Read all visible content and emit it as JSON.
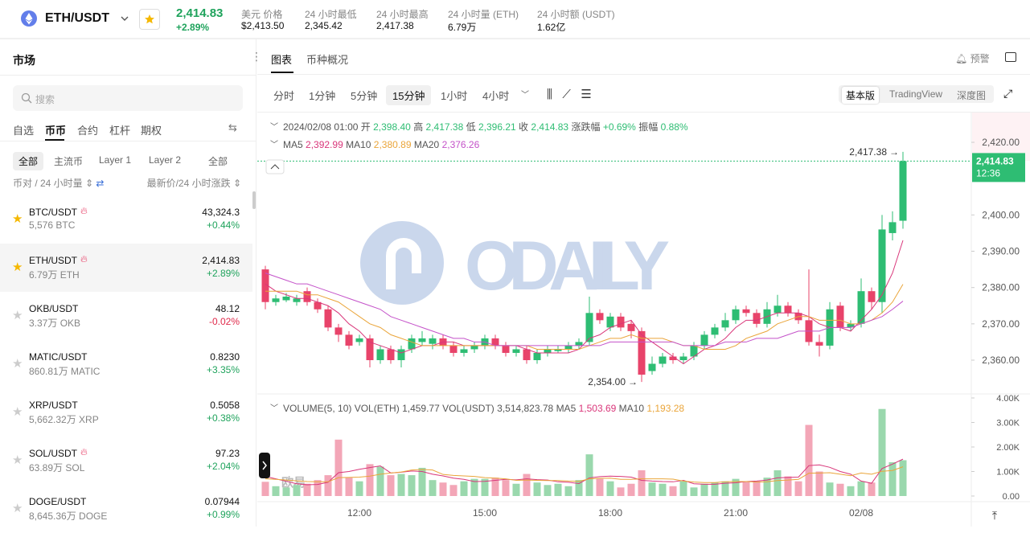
{
  "header": {
    "pair": "ETH/USDT",
    "price": "2,414.83",
    "change": "+2.89%",
    "stats": [
      {
        "label": "美元 价格",
        "value": "$2,413.50"
      },
      {
        "label": "24 小时最低",
        "value": "2,345.42"
      },
      {
        "label": "24 小时最高",
        "value": "2,417.38"
      },
      {
        "label": "24 小时量 (ETH)",
        "value": "6.79万"
      },
      {
        "label": "24 小时额 (USDT)",
        "value": "1.62亿"
      }
    ]
  },
  "sidebar": {
    "title": "市场",
    "search": "搜索",
    "tabs": [
      "自选",
      "币币",
      "合约",
      "杠杆",
      "期权"
    ],
    "active_tab": 1,
    "filters": [
      "全部",
      "主流币",
      "Layer 1",
      "Layer 2",
      "全部"
    ],
    "sort_left": "币对 / 24 小时量",
    "sort_right": "最新价/24 小时涨跌",
    "rows": [
      {
        "pair": "BTC/USDT",
        "volume": "5,576 BTC",
        "price": "43,324.3",
        "change": "+0.44%",
        "favorite": true,
        "hot": true
      },
      {
        "pair": "ETH/USDT",
        "volume": "6.79万 ETH",
        "price": "2,414.83",
        "change": "+2.89%",
        "favorite": true,
        "hot": true,
        "selected": true
      },
      {
        "pair": "OKB/USDT",
        "volume": "3.37万 OKB",
        "price": "48.12",
        "change": "-0.02%",
        "favorite": false,
        "hot": false
      },
      {
        "pair": "MATIC/USDT",
        "volume": "860.81万 MATIC",
        "price": "0.8230",
        "change": "+3.35%",
        "favorite": false,
        "hot": false
      },
      {
        "pair": "XRP/USDT",
        "volume": "5,662.32万 XRP",
        "price": "0.5058",
        "change": "+0.38%",
        "favorite": false,
        "hot": false
      },
      {
        "pair": "SOL/USDT",
        "volume": "63.89万 SOL",
        "price": "97.23",
        "change": "+2.04%",
        "favorite": false,
        "hot": true
      },
      {
        "pair": "DOGE/USDT",
        "volume": "8,645.36万 DOGE",
        "price": "0.07944",
        "change": "+0.99%",
        "favorite": false,
        "hot": false
      }
    ]
  },
  "tabs": [
    "图表",
    "币种概况"
  ],
  "alert": "预警",
  "toolbar": {
    "intervals": [
      "分时",
      "1分钟",
      "5分钟",
      "15分钟",
      "1小时",
      "4小时"
    ],
    "active": 3,
    "views": [
      "基本版",
      "TradingView",
      "深度图"
    ],
    "active_view": 0
  },
  "chart_data": {
    "type": "candlestick",
    "watermark": "ODAILY",
    "sub_watermark": "欧易",
    "info": {
      "time": "2024/02/08 01:00",
      "items": [
        {
          "label": "开",
          "value": "2,398.40"
        },
        {
          "label": "高",
          "value": "2,417.38"
        },
        {
          "label": "低",
          "value": "2,396.21"
        },
        {
          "label": "收",
          "value": "2,414.83"
        },
        {
          "label": "涨跌幅",
          "value": "+0.69%"
        },
        {
          "label": "振幅",
          "value": "0.88%"
        }
      ]
    },
    "categories": [
      null,
      null,
      null,
      null,
      null,
      null,
      null,
      null,
      null,
      "12:00",
      null,
      null,
      null,
      null,
      null,
      null,
      null,
      null,
      null,
      null,
      null,
      "15:00",
      null,
      null,
      null,
      null,
      null,
      null,
      null,
      null,
      null,
      null,
      null,
      "18:00",
      null,
      null,
      null,
      null,
      null,
      null,
      null,
      null,
      null,
      null,
      null,
      "21:00",
      null,
      null,
      null,
      null,
      null,
      null,
      null,
      null,
      null,
      null,
      null,
      "02/08",
      null,
      null,
      null,
      null
    ],
    "up_color": "#2ebd73",
    "down_color": "#e8436a",
    "open": [
      2385,
      2376,
      2376.5,
      2376,
      2379,
      2376,
      2374,
      2369,
      2367,
      2365,
      2366,
      2360,
      2363,
      2360,
      2363,
      2365,
      2364.5,
      2366,
      2364,
      2362,
      2363,
      2364,
      2366,
      2364,
      2362,
      2363,
      2360,
      2362,
      2362.5,
      2363,
      2364,
      2365,
      2373,
      2369,
      2372,
      2370,
      2368,
      2357,
      2359,
      2361,
      2360,
      2361,
      2364,
      2367,
      2369,
      2371,
      2374,
      2373,
      2370,
      2373,
      2375,
      2373,
      2371,
      2365,
      2364,
      2375,
      2369,
      2370,
      2379,
      2376,
      2395,
      2398.4
    ],
    "high": [
      2386,
      2378,
      2378.5,
      2378,
      2380,
      2377,
      2375,
      2370,
      2368,
      2367,
      2367,
      2364,
      2364,
      2364,
      2367,
      2368,
      2367,
      2367,
      2365,
      2364,
      2365,
      2367,
      2367,
      2365,
      2364,
      2364,
      2363,
      2364,
      2364,
      2365,
      2366,
      2377.5,
      2374,
      2373,
      2373,
      2371,
      2369,
      2361,
      2362,
      2362,
      2362,
      2365,
      2368,
      2370,
      2373,
      2375,
      2375,
      2374,
      2376,
      2378,
      2376,
      2374,
      2385,
      2367,
      2376,
      2376,
      2371,
      2382.5,
      2380,
      2400,
      2401,
      2417.38
    ],
    "low": [
      2374,
      2375,
      2376,
      2375,
      2375,
      2373,
      2368,
      2365,
      2363,
      2364,
      2358,
      2359,
      2359,
      2358,
      2362,
      2364,
      2363,
      2363,
      2361,
      2361,
      2362,
      2363,
      2363,
      2361,
      2361,
      2359,
      2359,
      2361,
      2362,
      2362,
      2363,
      2364,
      2370,
      2368,
      2368,
      2366,
      2354,
      2356,
      2358,
      2359,
      2359,
      2360,
      2363,
      2366,
      2368,
      2370,
      2372,
      2369,
      2369,
      2372,
      2372,
      2370,
      2364,
      2361,
      2363,
      2368,
      2368,
      2369,
      2374,
      2373,
      2393,
      2396.21
    ],
    "close": [
      2376,
      2377,
      2377.5,
      2377,
      2376,
      2374,
      2369,
      2367,
      2364,
      2366,
      2360,
      2363,
      2360,
      2363,
      2366,
      2366,
      2366,
      2364,
      2362,
      2363,
      2364,
      2366,
      2364,
      2362,
      2363,
      2360,
      2362,
      2363,
      2363,
      2364,
      2365,
      2373,
      2371,
      2372,
      2369,
      2368,
      2356,
      2359,
      2361,
      2360,
      2361,
      2364,
      2367,
      2369,
      2371,
      2374,
      2373,
      2370,
      2374,
      2375,
      2373,
      2371,
      2365,
      2364,
      2374,
      2369,
      2370,
      2379,
      2376,
      2396,
      2398,
      2414.83
    ],
    "ma_lines": [
      {
        "name": "MA5",
        "value_label": "2,392.99",
        "color": "#d9367a",
        "values": [
          2381,
          2379,
          2378,
          2377,
          2377,
          2376,
          2375,
          2373,
          2370,
          2368,
          2365,
          2364,
          2363,
          2362,
          2363,
          2364,
          2364,
          2365,
          2365,
          2364,
          2364,
          2364,
          2364,
          2364,
          2364,
          2363,
          2362,
          2362,
          2362,
          2362,
          2363,
          2366,
          2367,
          2369,
          2370,
          2371,
          2367,
          2365,
          2363,
          2361,
          2359,
          2361,
          2363,
          2364,
          2366,
          2369,
          2371,
          2371,
          2372,
          2373,
          2373,
          2373,
          2372,
          2370,
          2369,
          2369,
          2368,
          2371,
          2374,
          2378,
          2384,
          2392.99
        ]
      },
      {
        "name": "MA10",
        "value_label": "2,380.89",
        "color": "#eaa53a",
        "values": [
          2379,
          2379,
          2379,
          2379,
          2378,
          2378,
          2377,
          2376,
          2374,
          2372,
          2370,
          2369,
          2367,
          2366,
          2365,
          2364,
          2364,
          2364,
          2364,
          2364,
          2364,
          2364,
          2364,
          2364,
          2364,
          2364,
          2363,
          2363,
          2363,
          2363,
          2363,
          2364,
          2365,
          2366,
          2366,
          2367,
          2366,
          2366,
          2366,
          2365,
          2364,
          2364,
          2363,
          2363,
          2363,
          2364,
          2366,
          2367,
          2368,
          2370,
          2371,
          2372,
          2372,
          2371,
          2371,
          2371,
          2370,
          2370,
          2371,
          2373,
          2376,
          2380.89
        ]
      },
      {
        "name": "MA20",
        "value_label": "2,376.26",
        "color": "#c452c9",
        "values": [
          2384,
          2383,
          2382,
          2381,
          2381,
          2380,
          2379,
          2378,
          2377,
          2376,
          2375,
          2374,
          2372,
          2371,
          2370,
          2369,
          2368,
          2367,
          2366,
          2366,
          2365,
          2365,
          2364,
          2364,
          2364,
          2364,
          2364,
          2364,
          2364,
          2364,
          2364,
          2364,
          2364,
          2365,
          2365,
          2365,
          2365,
          2365,
          2365,
          2365,
          2364,
          2364,
          2364,
          2364,
          2365,
          2365,
          2365,
          2366,
          2366,
          2366,
          2367,
          2368,
          2368,
          2368,
          2369,
          2369,
          2369,
          2370,
          2371,
          2372,
          2374,
          2376.26
        ]
      }
    ],
    "ylim": [
      2350.7,
      2428.2
    ],
    "yticks": [
      {
        "value": 2360,
        "label": "2,360.00"
      },
      {
        "value": 2370,
        "label": "2,370.00"
      },
      {
        "value": 2380,
        "label": "2,380.00"
      },
      {
        "value": 2390,
        "label": "2,390.00"
      },
      {
        "value": 2400,
        "label": "2,400.00"
      },
      {
        "value": 2420,
        "label": "2,420.00"
      }
    ],
    "last_price": {
      "value": 2414.83,
      "label": "2,414.83",
      "countdown": "12:36"
    },
    "annotations": [
      {
        "index": 61,
        "value": 2417.38,
        "label": "2,417.38"
      },
      {
        "index": 36,
        "value": 2354,
        "label": "2,354.00"
      }
    ],
    "volume": {
      "title": "VOLUME(5, 10)",
      "info": [
        {
          "label": "VOL(ETH)",
          "value": "1,459.77"
        },
        {
          "label": "VOL(USDT)",
          "value": "3,514,823.78"
        }
      ],
      "up_color": "#9ad8ad",
      "down_color": "#f3a6b7",
      "values": [
        580,
        400,
        350,
        450,
        500,
        650,
        850,
        2300,
        750,
        600,
        1300,
        1200,
        850,
        900,
        850,
        1150,
        650,
        550,
        450,
        600,
        700,
        700,
        750,
        650,
        500,
        900,
        550,
        450,
        500,
        400,
        650,
        1700,
        700,
        600,
        350,
        500,
        1050,
        550,
        500,
        400,
        600,
        350,
        500,
        550,
        600,
        700,
        600,
        600,
        750,
        1050,
        800,
        600,
        2900,
        1000,
        550,
        500,
        400,
        600,
        550,
        3550,
        1380,
        1459.77
      ],
      "ma_lines": [
        {
          "name": "MA5",
          "value_label": "1,503.69",
          "color": "#d9367a",
          "values": [
            800,
            700,
            600,
            500,
            460,
            470,
            560,
            950,
            1000,
            1090,
            1160,
            1230,
            940,
            970,
            1020,
            1000,
            890,
            820,
            730,
            680,
            590,
            600,
            640,
            680,
            660,
            700,
            670,
            650,
            580,
            560,
            510,
            740,
            790,
            810,
            800,
            770,
            640,
            610,
            590,
            580,
            640,
            500,
            480,
            480,
            520,
            540,
            590,
            610,
            650,
            740,
            760,
            770,
            1240,
            1270,
            1170,
            1000,
            890,
            610,
            520,
            1120,
            1300,
            1503.69
          ]
        },
        {
          "name": "MA10",
          "value_label": "1,193.28",
          "color": "#eaa53a",
          "values": [
            700,
            680,
            650,
            620,
            590,
            580,
            580,
            750,
            760,
            770,
            810,
            890,
            940,
            980,
            1060,
            1080,
            1060,
            880,
            840,
            820,
            800,
            750,
            730,
            700,
            640,
            650,
            640,
            630,
            630,
            610,
            600,
            700,
            720,
            730,
            680,
            680,
            700,
            700,
            700,
            690,
            610,
            570,
            550,
            550,
            580,
            590,
            590,
            570,
            580,
            630,
            650,
            680,
            930,
            940,
            950,
            890,
            830,
            940,
            890,
            1010,
            1040,
            1193.28
          ]
        }
      ],
      "ylim": [
        -164,
        4164
      ],
      "yticks": [
        {
          "value": 0,
          "label": "0.00"
        },
        {
          "value": 1000,
          "label": "1.00K"
        },
        {
          "value": 2000,
          "label": "2.00K"
        },
        {
          "value": 3000,
          "label": "3.00K"
        },
        {
          "value": 4000,
          "label": "4.00K"
        }
      ]
    }
  }
}
